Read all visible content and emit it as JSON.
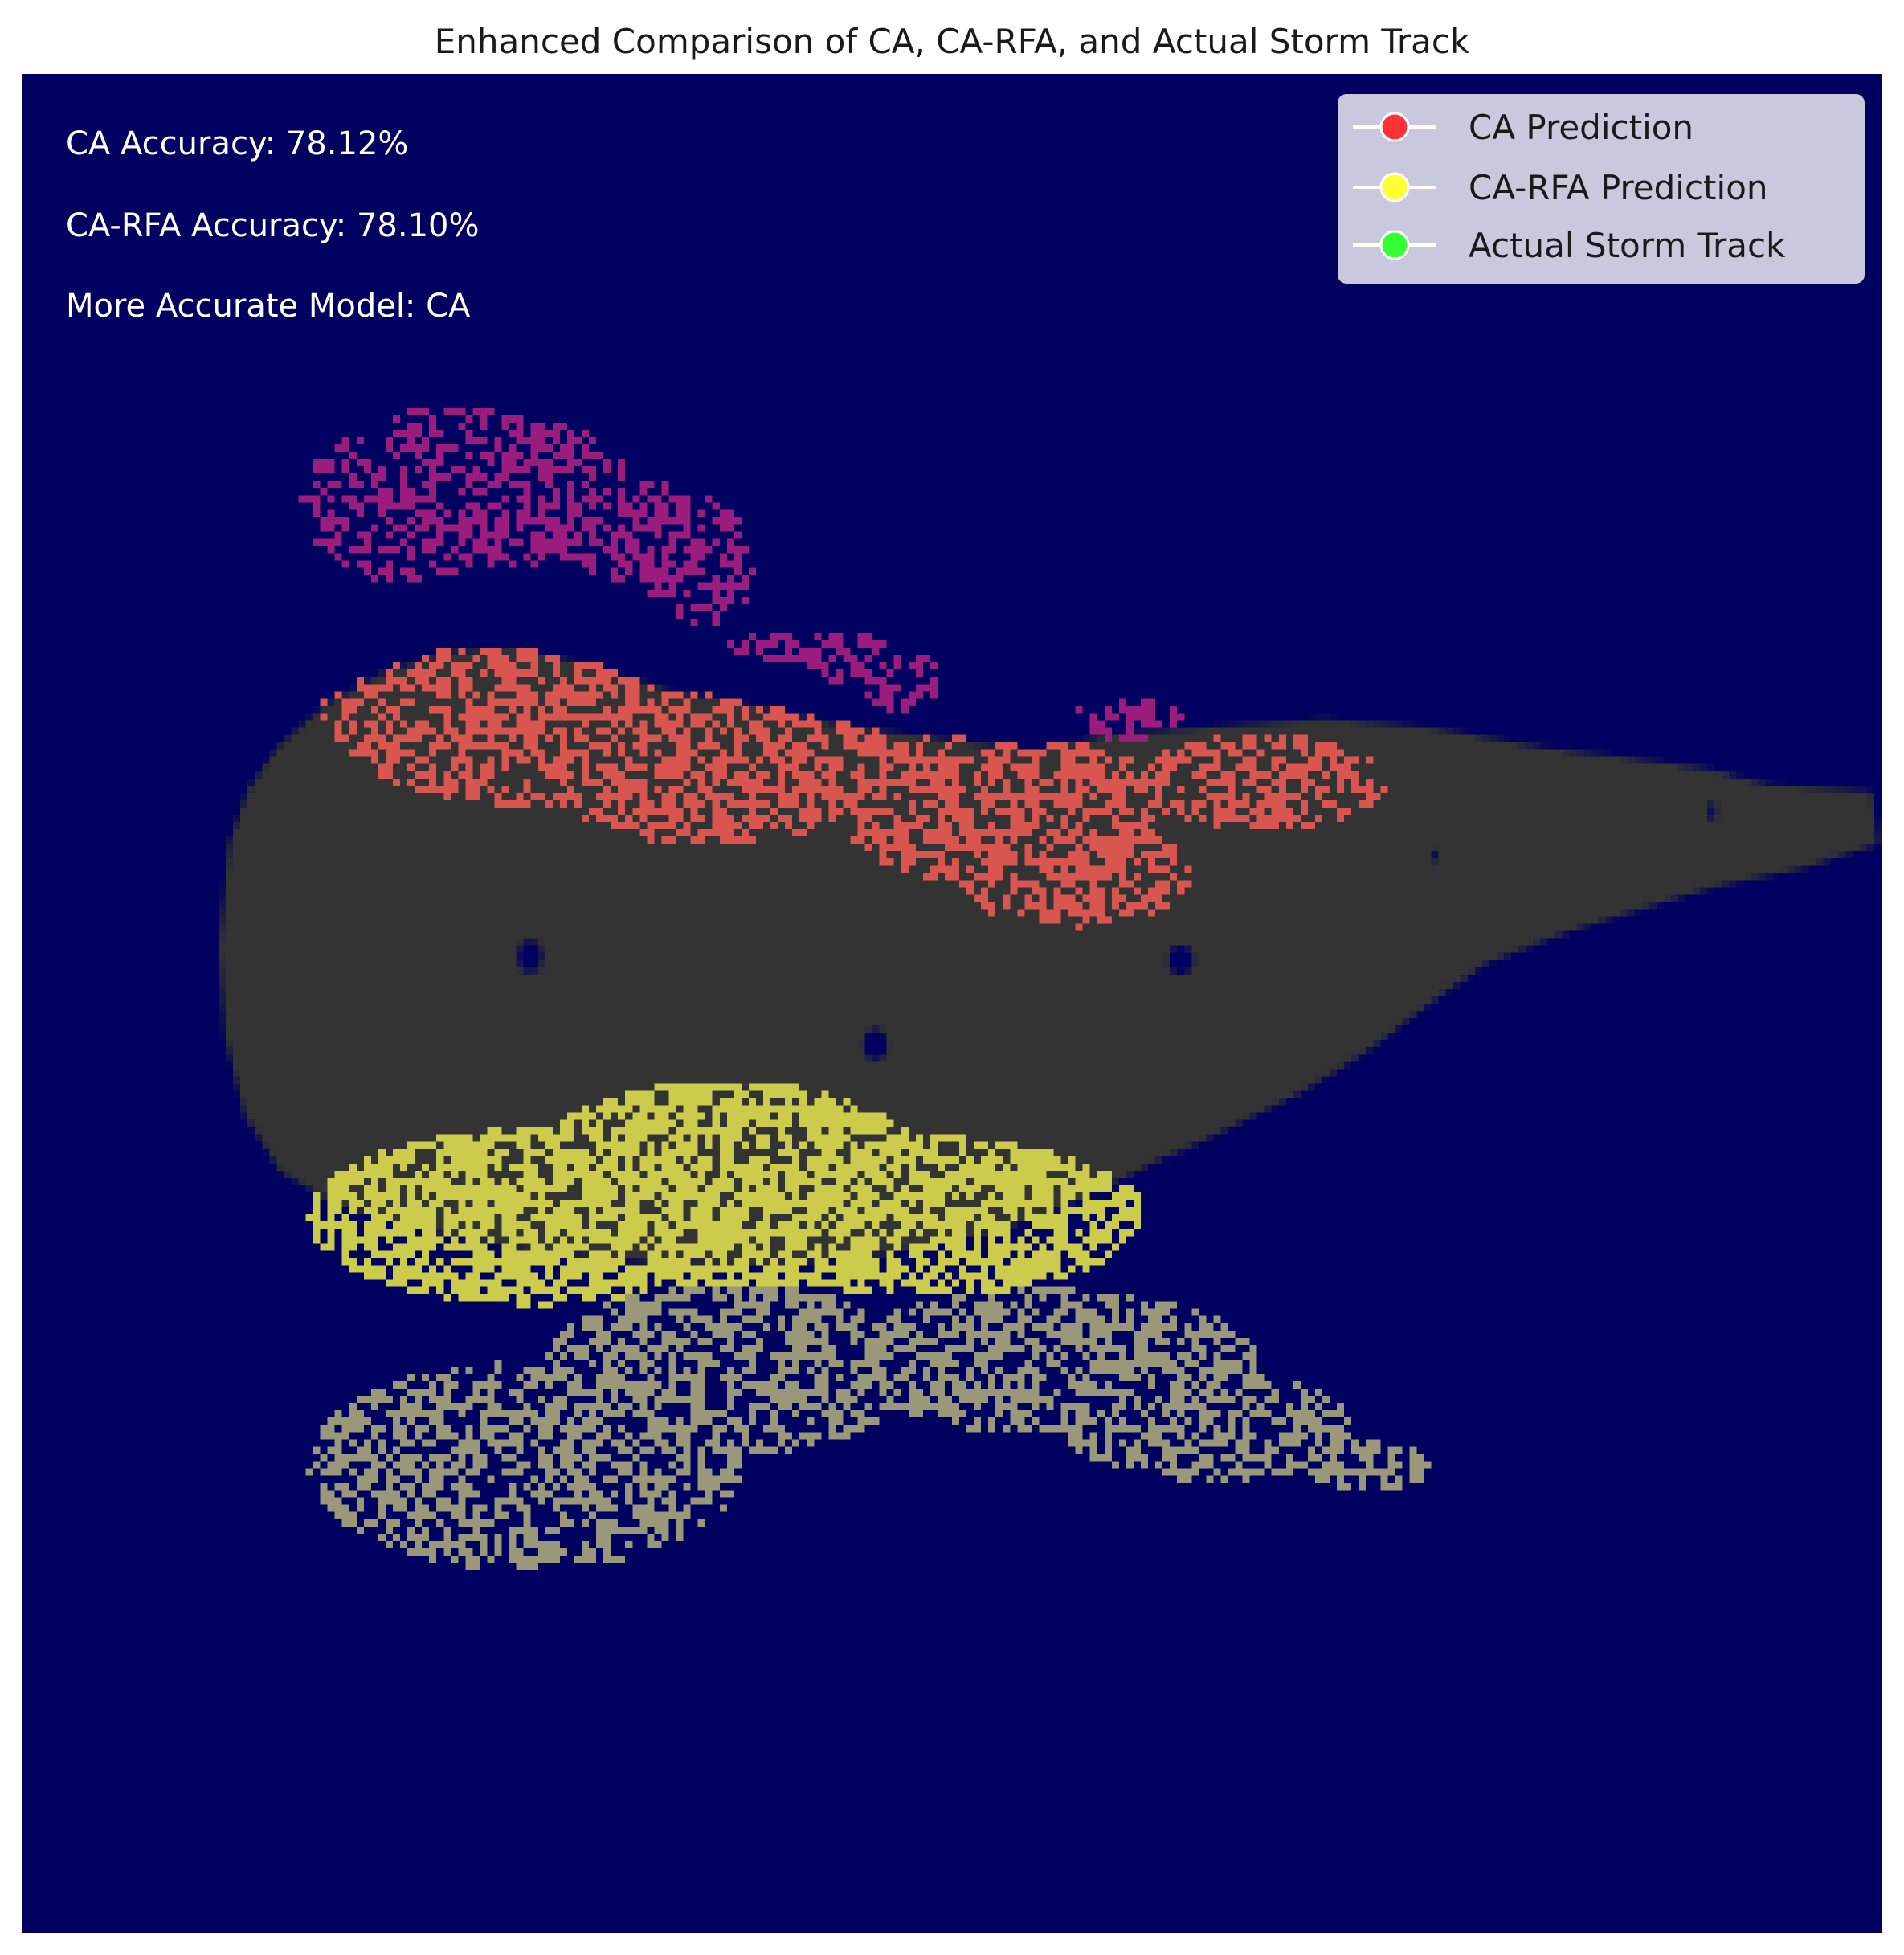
{
  "chart_data": {
    "type": "heatmap",
    "title": "Enhanced Comparison of CA, CA-RFA, and Actual Storm Track",
    "xlabel": "",
    "ylabel": "",
    "grid": false,
    "axes_visible": false,
    "background_color": "#000060",
    "annotations": [
      "CA Accuracy: 78.12%",
      "CA-RFA Accuracy: 78.10%",
      "More Accurate Model: CA"
    ],
    "legend": {
      "placement": "top-right",
      "entries": [
        {
          "label": "CA Prediction",
          "color": "#ff3333"
        },
        {
          "label": "CA-RFA Prediction",
          "color": "#ffff33"
        },
        {
          "label": "Actual Storm Track",
          "color": "#33ff33"
        }
      ]
    },
    "region_colors": {
      "base_track": "#333333",
      "ca_region": "#d95550",
      "ca_outer": "#9a1c7c",
      "rfa_region": "#cccc4c",
      "rfa_outer": "#99997a",
      "holes": "#000060"
    }
  }
}
